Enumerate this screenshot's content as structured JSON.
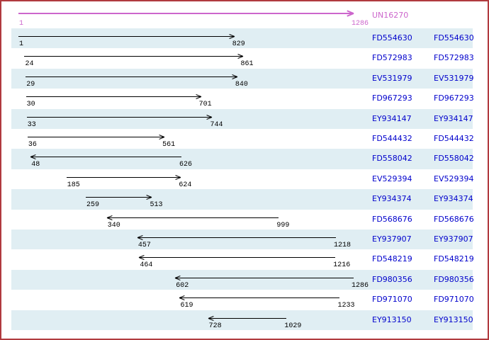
{
  "colors": {
    "border": "#b03a3e",
    "band": "#e0eef3",
    "reference": "#cc66cc",
    "accession_link": "#0000cc",
    "alignment_arrow": "#000000",
    "background": "#ffffff"
  },
  "chart_data": {
    "type": "bar",
    "subtype": "horizontal_range_alignment",
    "x_range": [
      1,
      1286
    ],
    "grid": false,
    "legend": false,
    "reference": {
      "label": "UN16270",
      "start": 1,
      "end": 1286,
      "direction": "forward"
    },
    "rows": [
      {
        "accession": "FD554630",
        "start": 1,
        "end": 829,
        "direction": "forward"
      },
      {
        "accession": "FD572983",
        "start": 24,
        "end": 861,
        "direction": "forward"
      },
      {
        "accession": "EV531979",
        "start": 29,
        "end": 840,
        "direction": "forward"
      },
      {
        "accession": "FD967293",
        "start": 30,
        "end": 701,
        "direction": "forward"
      },
      {
        "accession": "EY934147",
        "start": 33,
        "end": 744,
        "direction": "forward"
      },
      {
        "accession": "FD544432",
        "start": 36,
        "end": 561,
        "direction": "forward"
      },
      {
        "accession": "FD558042",
        "start": 48,
        "end": 626,
        "direction": "reverse"
      },
      {
        "accession": "EV529394",
        "start": 185,
        "end": 624,
        "direction": "forward"
      },
      {
        "accession": "EY934374",
        "start": 259,
        "end": 513,
        "direction": "forward"
      },
      {
        "accession": "FD568676",
        "start": 340,
        "end": 999,
        "direction": "reverse"
      },
      {
        "accession": "EY937907",
        "start": 457,
        "end": 1218,
        "direction": "reverse"
      },
      {
        "accession": "FD548219",
        "start": 464,
        "end": 1216,
        "direction": "reverse"
      },
      {
        "accession": "FD980356",
        "start": 602,
        "end": 1286,
        "direction": "reverse"
      },
      {
        "accession": "FD971070",
        "start": 619,
        "end": 1233,
        "direction": "reverse"
      },
      {
        "accession": "EY913150",
        "start": 728,
        "end": 1029,
        "direction": "reverse"
      }
    ]
  }
}
